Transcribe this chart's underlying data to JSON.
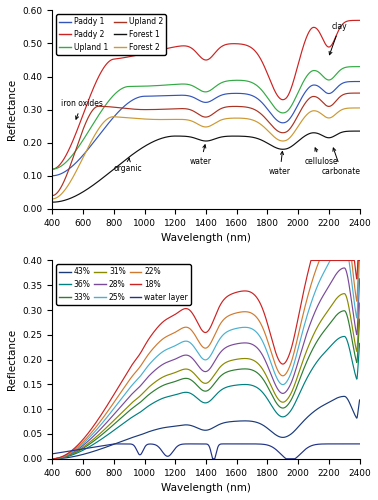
{
  "top_panel": {
    "xlabel": "Wavelength (nm)",
    "ylabel": "Reflectance",
    "xlim": [
      400,
      2400
    ],
    "ylim": [
      0.0,
      0.6
    ],
    "yticks": [
      0.0,
      0.1,
      0.2,
      0.3,
      0.4,
      0.5,
      0.6
    ],
    "xticks": [
      400,
      600,
      800,
      1000,
      1200,
      1400,
      1600,
      1800,
      2000,
      2200,
      2400
    ],
    "curves": [
      {
        "label": "Paddy 1",
        "color": "#3355bb",
        "type": "paddy1"
      },
      {
        "label": "Paddy 2",
        "color": "#cc2222",
        "type": "paddy2"
      },
      {
        "label": "Upland 1",
        "color": "#33aa44",
        "type": "upland1"
      },
      {
        "label": "Upland 2",
        "color": "#aa3322",
        "type": "upland2"
      },
      {
        "label": "Forest 1",
        "color": "#111111",
        "type": "forest1"
      },
      {
        "label": "Forest 2",
        "color": "#cc9933",
        "type": "forest2"
      }
    ]
  },
  "bottom_panel": {
    "xlabel": "Wavelength (nm)",
    "ylabel": "Reflectance",
    "xlim": [
      400,
      2400
    ],
    "ylim": [
      0.0,
      0.4
    ],
    "yticks": [
      0.0,
      0.05,
      0.1,
      0.15,
      0.2,
      0.25,
      0.3,
      0.35,
      0.4
    ],
    "xticks": [
      400,
      600,
      800,
      1000,
      1200,
      1400,
      1600,
      1800,
      2000,
      2200,
      2400
    ],
    "curves": [
      {
        "label": "43%",
        "color": "#1a3a7a",
        "type": "pct43"
      },
      {
        "label": "36%",
        "color": "#008080",
        "type": "pct36"
      },
      {
        "label": "33%",
        "color": "#2e7d32",
        "type": "pct33"
      },
      {
        "label": "31%",
        "color": "#8a8a00",
        "type": "pct31"
      },
      {
        "label": "28%",
        "color": "#7a4a9a",
        "type": "pct28"
      },
      {
        "label": "25%",
        "color": "#4ab0d0",
        "type": "pct25"
      },
      {
        "label": "22%",
        "color": "#d07a30",
        "type": "pct22"
      },
      {
        "label": "18%",
        "color": "#cc2222",
        "type": "pct18"
      },
      {
        "label": "water layer",
        "color": "#223388",
        "type": "water_layer"
      }
    ]
  }
}
